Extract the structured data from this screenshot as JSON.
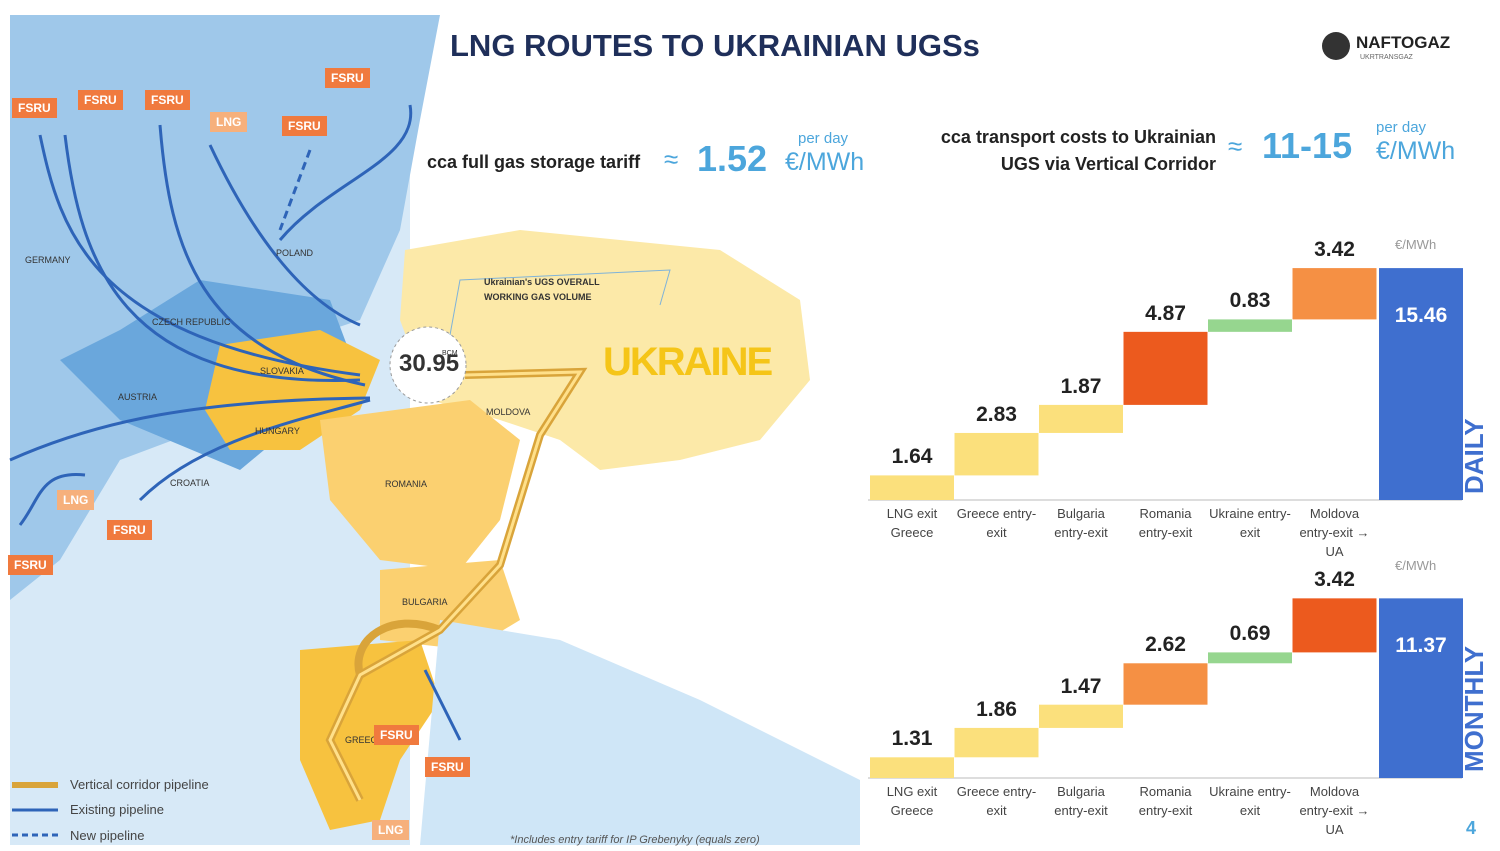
{
  "header": {
    "title": "LNG ROUTES TO UKRAINIAN UGSs",
    "logo": "NAFTOGAZ",
    "logo_sub": "UKRTRANSGAZ"
  },
  "tariff": {
    "label": "cca full gas storage tariff",
    "approx": "≈",
    "value": "1.52",
    "period": "per day",
    "unit": "€/MWh"
  },
  "transport": {
    "label": "cca transport costs to Ukrainian UGS via Vertical Corridor",
    "approx": "≈",
    "value": "11-15",
    "period": "per day",
    "unit": "€/MWh"
  },
  "map": {
    "country_big": "UKRAINE",
    "ugs_note": "Ukrainian's UGS OVERALL WORKING GAS VOLUME",
    "ugs_value": "30.95",
    "ugs_unit": "BCM",
    "countries": [
      "GERMANY",
      "POLAND",
      "CZECH REPUBLIC",
      "AUSTRIA",
      "SLOVAKIA",
      "HUNGARY",
      "ROMANIA",
      "MOLDOVA",
      "BULGARIA",
      "CROATIA",
      "GREECE"
    ],
    "terminals": [
      "FSRU",
      "FSRU",
      "FSRU",
      "FSRU",
      "FSRU",
      "FSRU",
      "FSRU",
      "FSRU",
      "FSRU",
      "LNG",
      "LNG",
      "LNG"
    ]
  },
  "legend": [
    "Vertical corridor pipeline",
    "Existing pipeline",
    "New pipeline"
  ],
  "footnote": "*Includes entry tariff for IP Grebenyky (equals zero)",
  "page_number": "4",
  "chart_data": [
    {
      "type": "waterfall",
      "unit": "€/MWh",
      "total_label": "DAILY",
      "categories": [
        "LNG exit Greece",
        "Greece entry-exit",
        "Bulgaria entry-exit",
        "Romania entry-exit",
        "Ukraine entry-exit",
        "Moldova entry-exit → UA",
        null
      ],
      "values": [
        1.64,
        2.83,
        1.87,
        4.87,
        0.83,
        3.42,
        15.46
      ],
      "colors": [
        "#fbe07c",
        "#fbe07c",
        "#fbe07c",
        "#ec5a1e",
        "#96d68f",
        "#f59044",
        "#3f6fcf"
      ]
    },
    {
      "type": "waterfall",
      "unit": "€/MWh",
      "total_label": "MONTHLY",
      "categories": [
        "LNG exit Greece",
        "Greece entry-exit",
        "Bulgaria entry-exit",
        "Romania entry-exit",
        "Ukraine entry-exit",
        "Moldova entry-exit → UA",
        null
      ],
      "values": [
        1.31,
        1.86,
        1.47,
        2.62,
        0.69,
        3.42,
        11.37
      ],
      "colors": [
        "#fbe07c",
        "#fbe07c",
        "#fbe07c",
        "#f59044",
        "#96d68f",
        "#ec5a1e",
        "#3f6fcf"
      ]
    }
  ]
}
